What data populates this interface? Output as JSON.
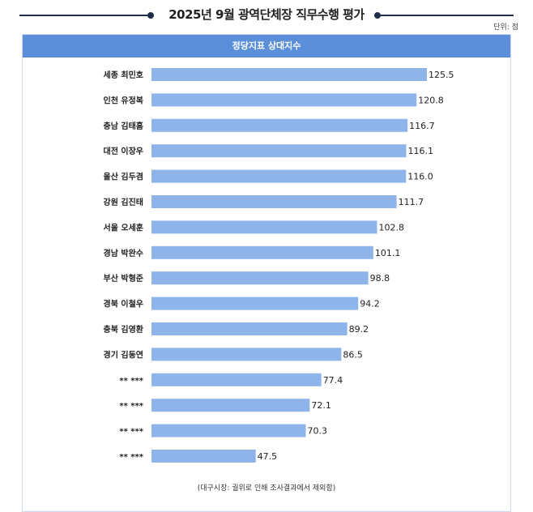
{
  "unit": "단위: 점",
  "chart_data": {
    "type": "bar",
    "orientation": "horizontal",
    "title": "2025년 9월 광역단체장 직무수행 평가",
    "subtitle": "정당지표 상대지수",
    "categories": [
      "세종 최민호",
      "인천 유정복",
      "충남 김태흠",
      "대전 이장우",
      "울산 김두겸",
      "강원 김진태",
      "서울 오세훈",
      "경남 박완수",
      "부산 박형준",
      "경북 이철우",
      "충북 김영환",
      "경기 김동연",
      "** ***",
      "** ***",
      "** ***",
      "** ***"
    ],
    "values": [
      125.5,
      120.8,
      116.7,
      116.1,
      116.0,
      111.7,
      102.8,
      101.1,
      98.8,
      94.2,
      89.2,
      86.5,
      77.4,
      72.1,
      70.3,
      47.5
    ],
    "value_labels": [
      "125.5",
      "120.8",
      "116.7",
      "116.1",
      "116.0",
      "111.7",
      "102.8",
      "101.1",
      "98.8",
      "94.2",
      "89.2",
      "86.5",
      "77.4",
      "72.1",
      "70.3",
      "47.5"
    ],
    "xlim": [
      0,
      125.5
    ],
    "grid": false,
    "bar_color": "#8fb4ea",
    "header_color": "#5b8fd9",
    "note": "(대구시장: 궐위로 인해 조사결과에서 제외함)"
  }
}
